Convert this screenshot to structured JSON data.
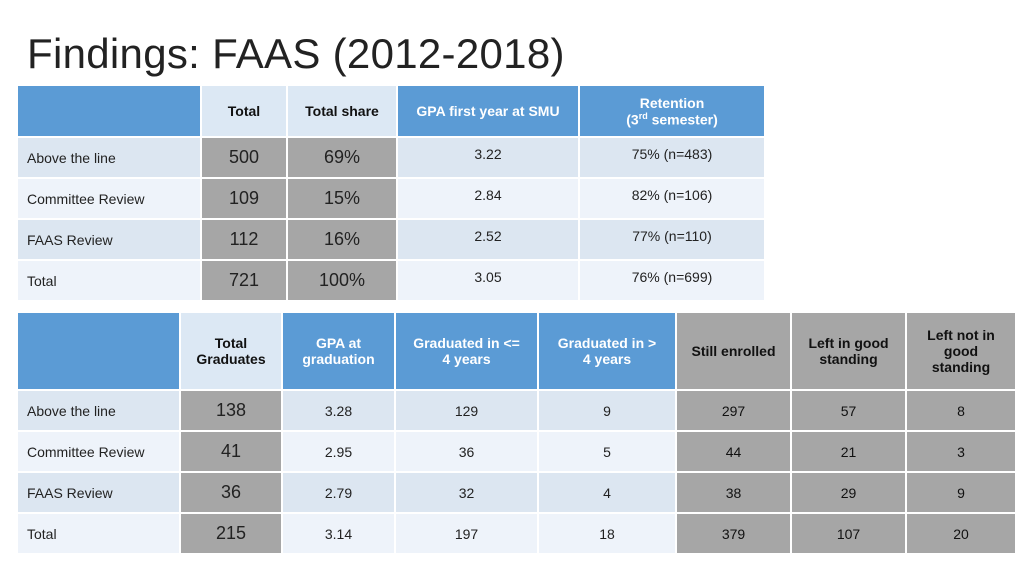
{
  "title": "Findings: FAAS (2012-2018)",
  "table1": {
    "headers": {
      "total": "Total",
      "total_share": "Total share",
      "gpa": "GPA first year at SMU",
      "retention_line1": "Retention",
      "retention_pre": "(3",
      "retention_sup": "rd",
      "retention_post": " semester)"
    },
    "rows": [
      {
        "label": "Above the line",
        "total": "500",
        "share": "69%",
        "gpa": "3.22",
        "retention": "75% (n=483)"
      },
      {
        "label": "Committee Review",
        "total": "109",
        "share": "15%",
        "gpa": "2.84",
        "retention": "82% (n=106)"
      },
      {
        "label": "FAAS Review",
        "total": "112",
        "share": "16%",
        "gpa": "2.52",
        "retention": "77% (n=110)"
      },
      {
        "label": "Total",
        "total": "721",
        "share": "100%",
        "gpa": "3.05",
        "retention": "76% (n=699)"
      }
    ]
  },
  "table2": {
    "headers": {
      "total_grads_1": "Total",
      "total_grads_2": "Graduates",
      "gpa_grad_1": "GPA at",
      "gpa_grad_2": "graduation",
      "grad_le4_1": "Graduated in <=",
      "grad_le4_2": "4 years",
      "grad_gt4_1": "Graduated in >",
      "grad_gt4_2": "4 years",
      "still_enrolled": "Still enrolled",
      "left_good_1": "Left in good",
      "left_good_2": "standing",
      "left_not_1": "Left not in",
      "left_not_2": "good",
      "left_not_3": "standing"
    },
    "rows": [
      {
        "label": "Above the line",
        "total_grads": "138",
        "gpa": "3.28",
        "le4": "129",
        "gt4": "9",
        "enrolled": "297",
        "left_good": "57",
        "left_not": "8"
      },
      {
        "label": "Committee Review",
        "total_grads": "41",
        "gpa": "2.95",
        "le4": "36",
        "gt4": "5",
        "enrolled": "44",
        "left_good": "21",
        "left_not": "3"
      },
      {
        "label": "FAAS Review",
        "total_grads": "36",
        "gpa": "2.79",
        "le4": "32",
        "gt4": "4",
        "enrolled": "38",
        "left_good": "29",
        "left_not": "9"
      },
      {
        "label": "Total",
        "total_grads": "215",
        "gpa": "3.14",
        "le4": "197",
        "gt4": "18",
        "enrolled": "379",
        "left_good": "107",
        "left_not": "20"
      }
    ]
  }
}
